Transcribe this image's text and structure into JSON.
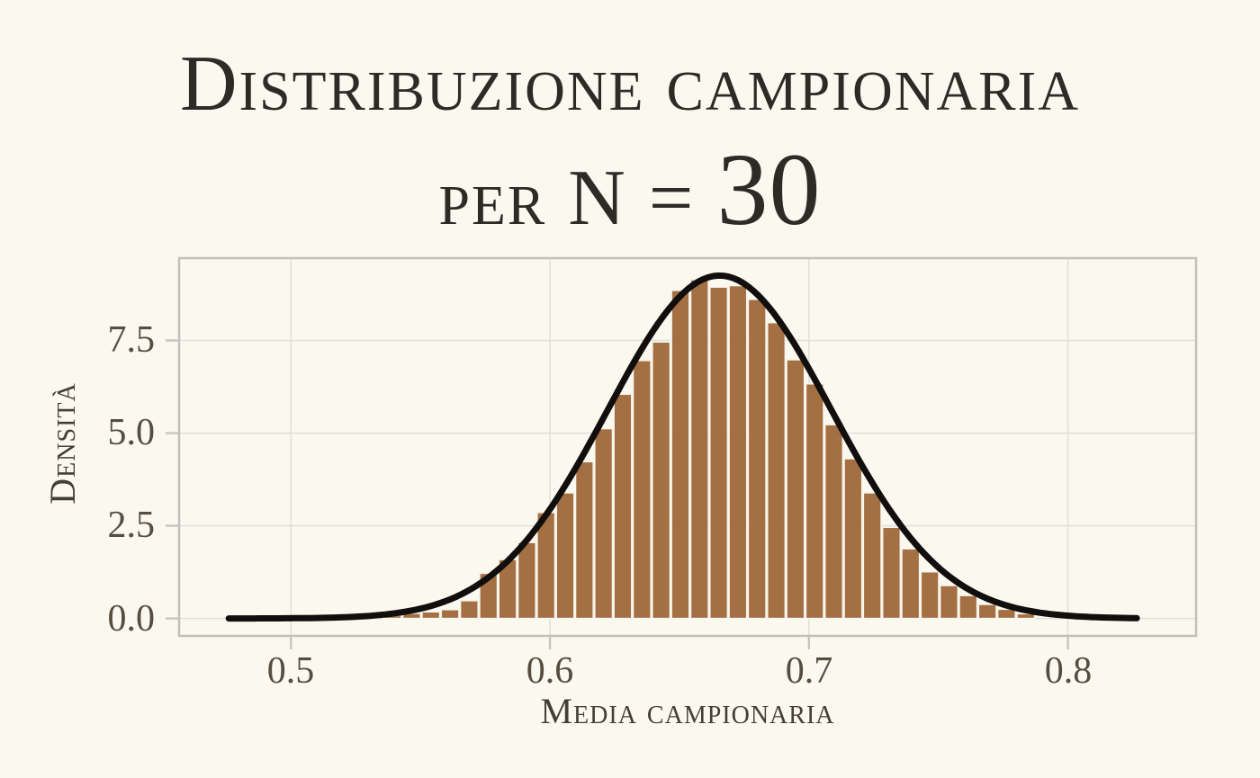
{
  "page": {
    "background": "#FBF8F0"
  },
  "title": {
    "line1": "Distribuzione campionaria",
    "line2_prefix": "per N = ",
    "line2_number": "30"
  },
  "x_axis": {
    "label": "Media campionaria",
    "ticks": [
      "0.5",
      "0.6",
      "0.7",
      "0.8"
    ]
  },
  "y_axis": {
    "label": "Densità",
    "ticks": [
      "0.0",
      "2.5",
      "5.0",
      "7.5"
    ]
  },
  "chart_data": {
    "type": "bar",
    "subtype": "histogram-with-density-curve",
    "title": "Distribuzione campionaria per N = 30",
    "xlabel": "Media campionaria",
    "ylabel": "Densità",
    "xlim": [
      0.4568,
      0.8495
    ],
    "ylim": [
      -0.47,
      9.72
    ],
    "x_ticks": [
      0.5,
      0.6,
      0.7,
      0.8
    ],
    "y_ticks": [
      0.0,
      2.5,
      5.0,
      7.5
    ],
    "grid": true,
    "legend": false,
    "bins": {
      "start": 0.5355,
      "width": 0.00741,
      "heights": [
        0.08,
        0.14,
        0.18,
        0.24,
        0.48,
        1.22,
        1.59,
        2.05,
        2.86,
        3.39,
        4.23,
        5.12,
        6.05,
        6.96,
        7.46,
        8.85,
        9.14,
        8.94,
        8.98,
        8.61,
        7.98,
        6.98,
        6.33,
        5.23,
        4.31,
        3.39,
        2.46,
        1.88,
        1.26,
        0.89,
        0.62,
        0.38,
        0.25,
        0.13
      ]
    },
    "curve": {
      "shape": "normal",
      "mu": 0.6655,
      "sigma": 0.0433,
      "peak": 9.25,
      "x_start": 0.476,
      "x_end": 0.8266
    },
    "colors": {
      "bar_fill": "#9D6536",
      "bar_stroke": "#F8F5EC",
      "curve": "#100F0D",
      "grid": "#E2E0DA",
      "panel_border": "#C2C0BA",
      "tick_mark": "#C8C5BE",
      "background": "#FBF8F0",
      "text": "#453E34"
    }
  }
}
